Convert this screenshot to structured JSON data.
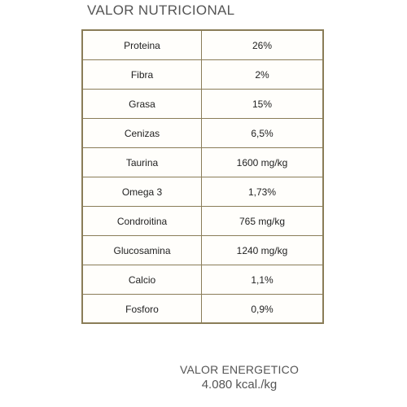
{
  "heading": "VALOR NUTRICIONAL",
  "rows": [
    {
      "name": "Proteina",
      "value": "26%"
    },
    {
      "name": "Fibra",
      "value": "2%"
    },
    {
      "name": "Grasa",
      "value": "15%"
    },
    {
      "name": "Cenizas",
      "value": "6,5%"
    },
    {
      "name": "Taurina",
      "value": "1600 mg/kg"
    },
    {
      "name": "Omega 3",
      "value": "1,73%"
    },
    {
      "name": "Condroitina",
      "value": "765 mg/kg"
    },
    {
      "name": "Glucosamina",
      "value": "1240 mg/kg"
    },
    {
      "name": "Calcio",
      "value": "1,1%"
    },
    {
      "name": "Fosforo",
      "value": "0,9%"
    }
  ],
  "energy": {
    "title": "VALOR ENERGETICO",
    "amount": "4.080 kcal./kg"
  },
  "colors": {
    "border": "#8a7d58",
    "heading_text": "#555555",
    "cell_text": "#222222"
  }
}
